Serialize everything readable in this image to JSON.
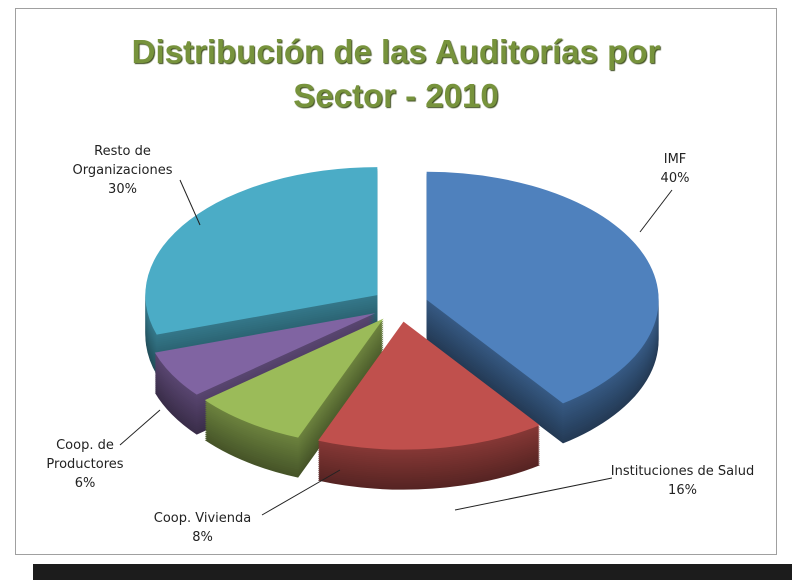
{
  "chart_data": {
    "type": "pie",
    "title": "Distribución de las Auditorías por Sector - 2010",
    "categories": [
      "IMF",
      "Instituciones de Salud",
      "Coop. Vivienda",
      "Coop. de Productores",
      "Resto de Organizaciones"
    ],
    "values": [
      40,
      16,
      8,
      6,
      30
    ],
    "value_labels": [
      "40%",
      "16%",
      "8%",
      "6%",
      "30%"
    ],
    "colors": [
      "#4f81bd",
      "#c0504d",
      "#9bbb59",
      "#8064a2",
      "#4bacc6"
    ]
  }
}
